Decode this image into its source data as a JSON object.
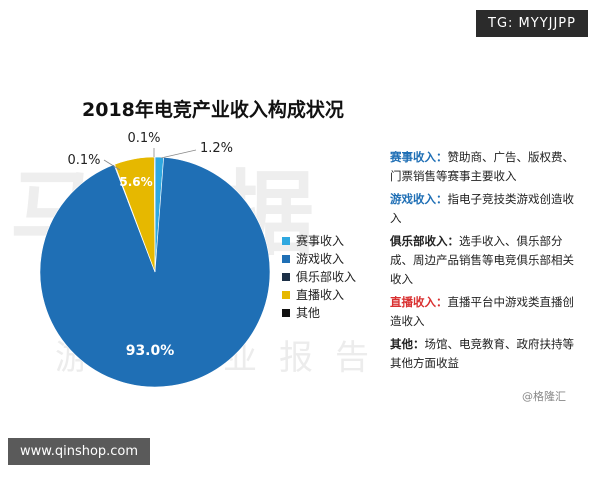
{
  "badge_top": "TG: MYYJJPP",
  "badge_bottom": "www.qinshop.com",
  "watermark": {
    "big": "马数据",
    "small": "游戏产业报告"
  },
  "credit": "@格隆汇",
  "colors": {
    "赛事收入": "#2fa8e0",
    "游戏收入": "#1f6fb5",
    "俱乐部收入": "#1d3047",
    "直播收入": "#e6b800",
    "其他": "#111111",
    "notes_label_blue": "#1f6fb5",
    "notes_label_red": "#d93030"
  },
  "chart_data": {
    "type": "pie",
    "title": "2018年电竞产业收入构成状况",
    "series": [
      {
        "name": "赛事收入",
        "value": 1.2,
        "label": "1.2%"
      },
      {
        "name": "游戏收入",
        "value": 93.0,
        "label": "93.0%"
      },
      {
        "name": "俱乐部收入",
        "value": 0.1,
        "label": "0.1%"
      },
      {
        "name": "直播收入",
        "value": 5.6,
        "label": "5.6%"
      },
      {
        "name": "其他",
        "value": 0.1,
        "label": "0.1%"
      }
    ],
    "legend_position": "right"
  },
  "notes": [
    {
      "label": "赛事收入：",
      "text": "赞助商、广告、版权费、门票销售等赛事主要收入",
      "color_key": "notes_label_blue"
    },
    {
      "label": "游戏收入：",
      "text": "指电子竞技类游戏创造收入",
      "color_key": "notes_label_blue"
    },
    {
      "label": "俱乐部收入：",
      "text": "选手收入、俱乐部分成、周边产品销售等电竞俱乐部相关收入",
      "color_key": "notes_label_dark"
    },
    {
      "label": "直播收入：",
      "text": "直播平台中游戏类直播创造收入",
      "color_key": "notes_label_red"
    },
    {
      "label": "其他：",
      "text": "场馆、电竞教育、政府扶持等其他方面收益",
      "color_key": "notes_label_dark"
    }
  ]
}
